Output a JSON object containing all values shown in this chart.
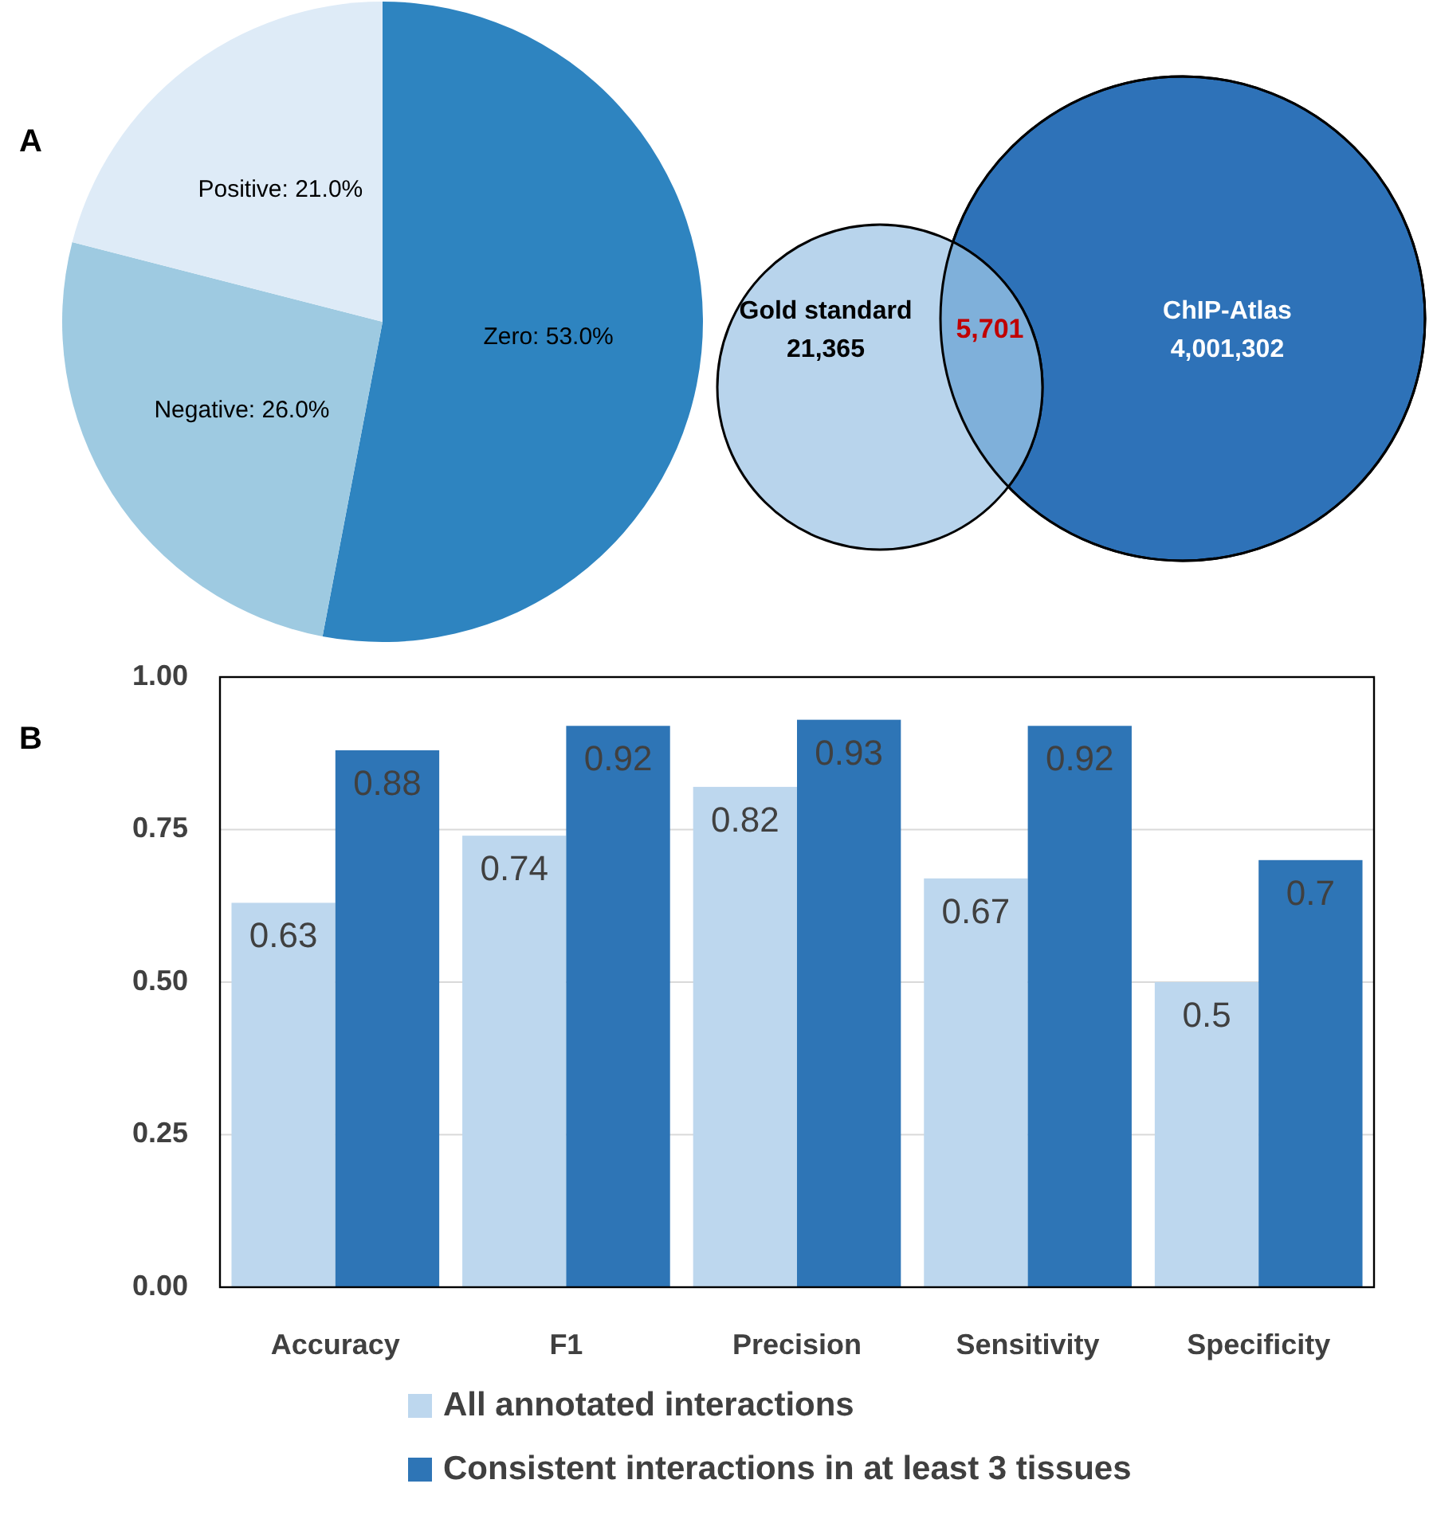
{
  "chart_data": [
    {
      "type": "pie",
      "categories": [
        "Zero",
        "Negative",
        "Positive"
      ],
      "values": [
        53.0,
        26.0,
        21.0
      ],
      "value_labels": [
        "53.0%",
        "26.0%",
        "21.0%"
      ],
      "colors": [
        "#2e84c0",
        "#9ecae1",
        "#deebf7"
      ],
      "annotations": [
        "A"
      ]
    },
    {
      "type": "other",
      "categories": [
        "Gold standard",
        "ChIP-Atlas"
      ],
      "values": [
        21365,
        4001302
      ],
      "value_labels": [
        "21,365",
        "4,001,302"
      ],
      "colors": [
        "#b8d4ec",
        "#2e72b8"
      ],
      "annotations": [
        "5,701"
      ]
    },
    {
      "type": "bar",
      "categories": [
        "Accuracy",
        "F1",
        "Precision",
        "Sensitivity",
        "Specificity"
      ],
      "series": [
        {
          "name": "All annotated interactions",
          "color": "#bdd7ee",
          "values": [
            0.63,
            0.74,
            0.82,
            0.67,
            0.5
          ]
        },
        {
          "name": "Consistent interactions in at least 3 tissues",
          "color": "#2e75b6",
          "values": [
            0.88,
            0.92,
            0.93,
            0.92,
            0.7
          ]
        }
      ],
      "ylim": [
        0,
        1
      ],
      "yticks": [
        {
          "value": 0,
          "label": "0.00"
        },
        {
          "value": 0.25,
          "label": "0.25"
        },
        {
          "value": 0.5,
          "label": "0.50"
        },
        {
          "value": 0.75,
          "label": "0.75"
        },
        {
          "value": 1,
          "label": "1.00"
        }
      ],
      "grid": "y",
      "legend": "bottom",
      "data_labels": true,
      "annotations": [
        "B"
      ]
    }
  ]
}
